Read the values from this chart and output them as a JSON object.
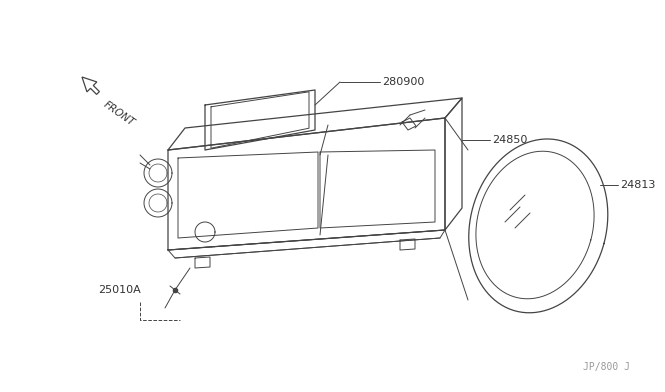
{
  "bg_color": "#ffffff",
  "line_color": "#444444",
  "text_color": "#333333",
  "watermark": "JP/800 J",
  "front_label": "FRONT",
  "label_280900": "280900",
  "label_24850": "24850",
  "label_24813": "24813",
  "label_25010A": "25010A"
}
